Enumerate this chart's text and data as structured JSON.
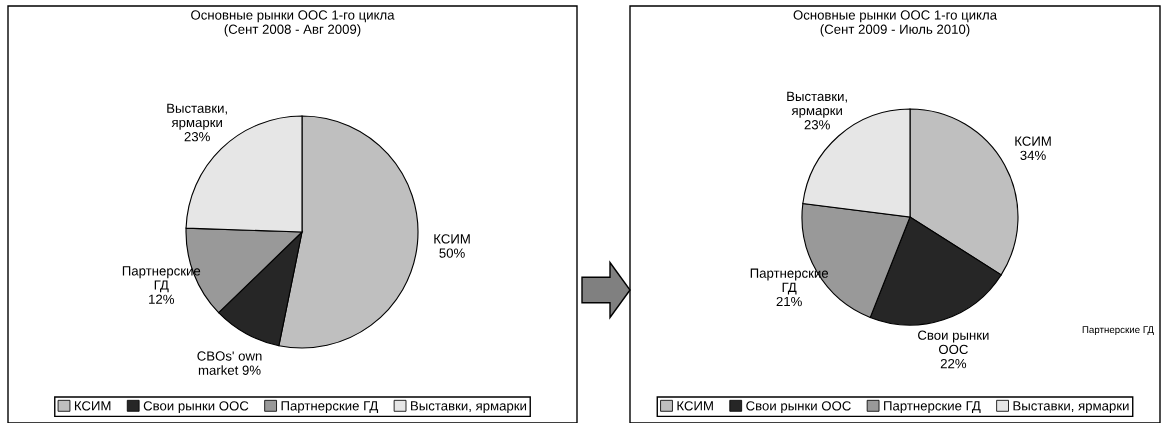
{
  "chart_data": [
    {
      "type": "pie",
      "title": "Основные рынки ООС 1-го цикла\n(Сент 2008 - Авг 2009)",
      "categories": [
        "КСИМ",
        "Свои рынки ООС",
        "Партнерские ГД",
        "Выставки, ярмарки"
      ],
      "values": [
        50,
        9,
        12,
        23
      ],
      "colors": [
        "#bfbfbf",
        "#262626",
        "#999999",
        "#e6e6e6"
      ],
      "value_labels": [
        "КСИМ\n50%",
        "CBOs' own\nmarket 9%",
        "Партнерские\nГД\n12%",
        "Выставки,\nярмарки\n23%"
      ],
      "legend": "bottom"
    },
    {
      "type": "pie",
      "title": "Основные рынки ООС 1-го цикла\n(Сент 2009 - Июль 2010)",
      "categories": [
        "КСИМ",
        "Свои рынки ООС",
        "Партнерские ГД",
        "Выставки, ярмарки"
      ],
      "values": [
        34,
        22,
        21,
        23
      ],
      "colors": [
        "#bfbfbf",
        "#262626",
        "#999999",
        "#e6e6e6"
      ],
      "value_labels": [
        "КСИМ\n34%",
        "Свои рынки\nООС\n22%",
        "Партнерские\nГД\n21%",
        "Выставки,\nярмарки\n23%"
      ],
      "legend": "bottom",
      "annotations": [
        "Партнерские ГД"
      ]
    }
  ]
}
